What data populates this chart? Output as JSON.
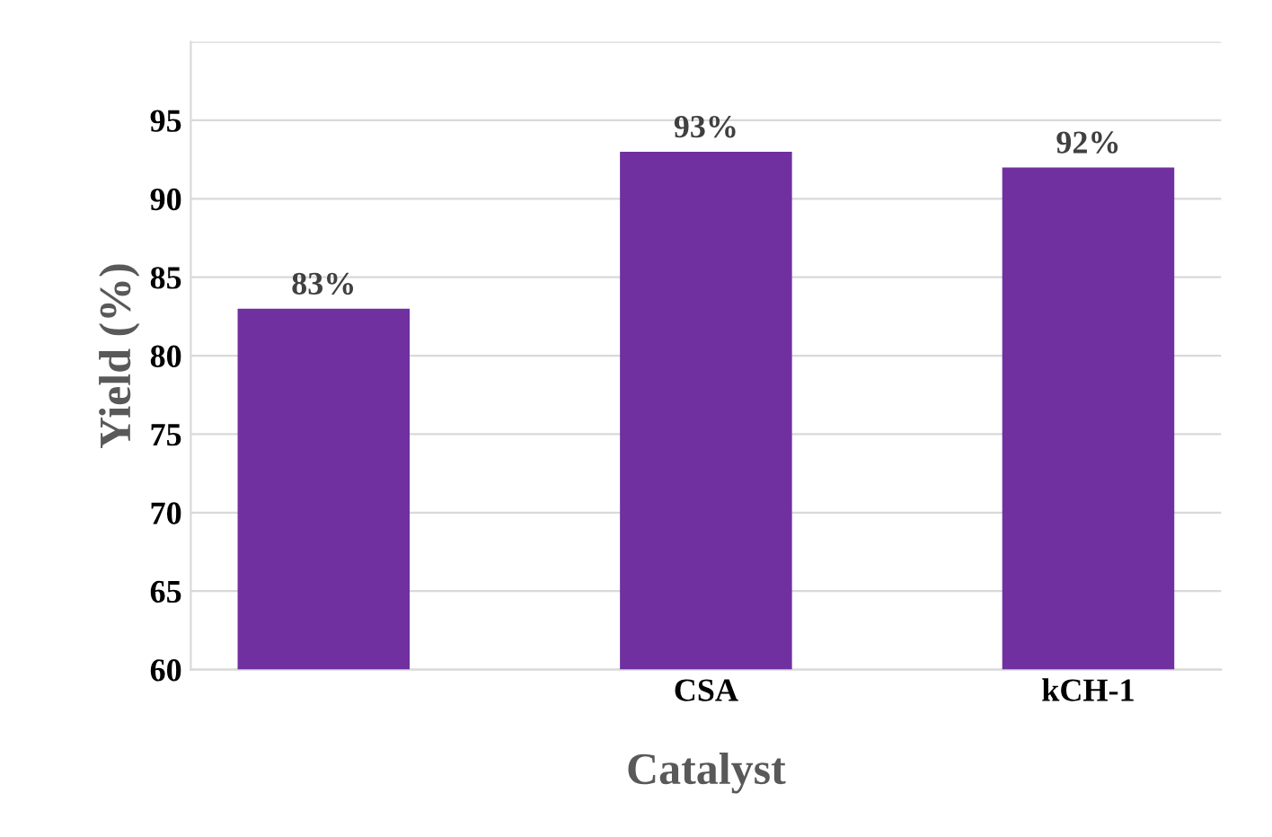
{
  "chart_data": {
    "type": "bar",
    "xlabel": "Catalyst",
    "ylabel": "Yield (%)",
    "categories": [
      null,
      "CSA",
      "kCH-1"
    ],
    "values": [
      83,
      93,
      92
    ],
    "value_labels": [
      "83%",
      "93%",
      "92%"
    ],
    "color": "#7030a0",
    "ylim": [
      60,
      100
    ],
    "yticks": [
      60,
      65,
      70,
      75,
      80,
      85,
      90,
      95,
      {
        "value": 100,
        "label": null
      }
    ],
    "grid": "y",
    "legend": false
  }
}
